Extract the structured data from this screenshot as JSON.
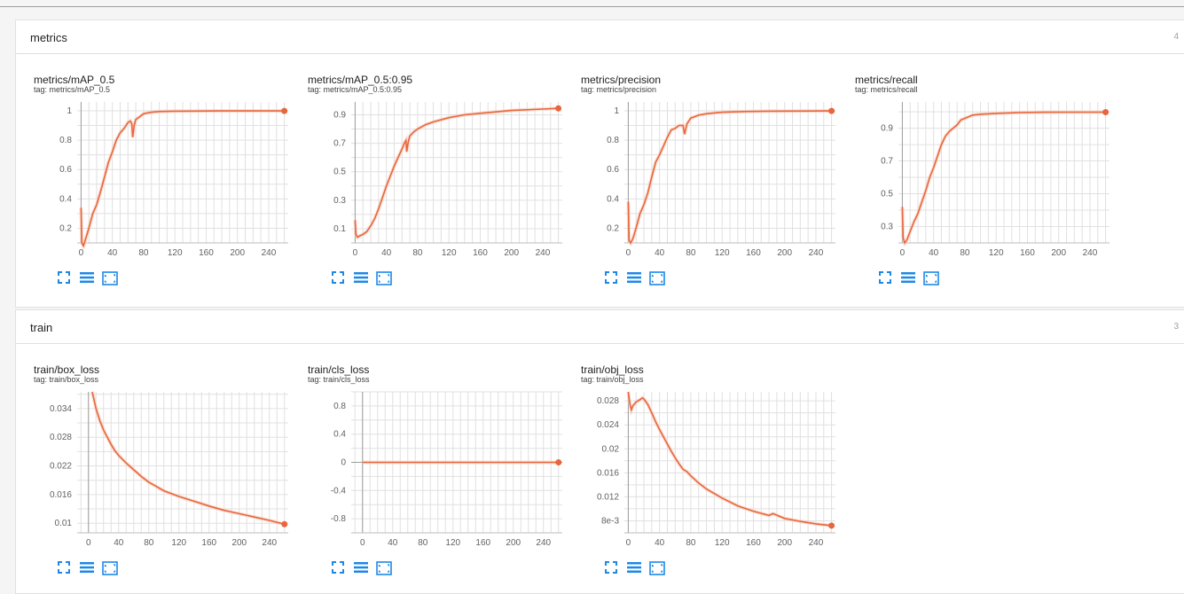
{
  "sections": [
    {
      "title": "metrics",
      "count": "4",
      "cards": [
        {
          "title": "metrics/mAP_0.5",
          "tag": "tag: metrics/mAP_0.5"
        },
        {
          "title": "metrics/mAP_0.5:0.95",
          "tag": "tag: metrics/mAP_0.5:0.95"
        },
        {
          "title": "metrics/precision",
          "tag": "tag: metrics/precision"
        },
        {
          "title": "metrics/recall",
          "tag": "tag: metrics/recall"
        }
      ]
    },
    {
      "title": "train",
      "count": "3",
      "cards": [
        {
          "title": "train/box_loss",
          "tag": "tag: train/box_loss"
        },
        {
          "title": "train/cls_loss",
          "tag": "tag: train/cls_loss"
        },
        {
          "title": "train/obj_loss",
          "tag": "tag: train/obj_loss"
        }
      ]
    }
  ],
  "toolbar": {
    "icons": [
      "fullscreen-icon",
      "toggle-y-log-icon",
      "fit-domain-icon"
    ]
  },
  "colors": {
    "series": "#e8663d",
    "series_smoothed_bg": "#f6c9b8",
    "grid": "#e0e0e0",
    "zero_axis": "#9e9e9e",
    "toolbar_icon": "#1e88e5"
  },
  "chart_data": [
    {
      "type": "line",
      "title": "metrics/mAP_0.5",
      "x_ticks": [
        "0",
        "40",
        "80",
        "120",
        "160",
        "200",
        "240"
      ],
      "y_ticks": [
        "0.2",
        "0.4",
        "0.6",
        "0.8",
        "1"
      ],
      "xlim": [
        -5,
        265
      ],
      "ylim": [
        0.1,
        1.06
      ],
      "series": [
        {
          "x": [
            0,
            1,
            3,
            6,
            10,
            15,
            20,
            25,
            30,
            35,
            40,
            45,
            50,
            55,
            60,
            63,
            65,
            66,
            68,
            70,
            75,
            80,
            90,
            100,
            120,
            150,
            180,
            220,
            260
          ],
          "y": [
            0.34,
            0.1,
            0.08,
            0.13,
            0.2,
            0.3,
            0.36,
            0.45,
            0.55,
            0.65,
            0.72,
            0.8,
            0.85,
            0.88,
            0.92,
            0.93,
            0.91,
            0.82,
            0.9,
            0.94,
            0.96,
            0.98,
            0.99,
            0.995,
            0.997,
            0.998,
            0.999,
            0.999,
            0.999
          ]
        }
      ]
    },
    {
      "type": "line",
      "title": "metrics/mAP_0.5:0.95",
      "x_ticks": [
        "0",
        "40",
        "80",
        "120",
        "160",
        "200",
        "240"
      ],
      "y_ticks": [
        "0.1",
        "0.3",
        "0.5",
        "0.7",
        "0.9"
      ],
      "xlim": [
        -5,
        265
      ],
      "ylim": [
        0.0,
        0.99
      ],
      "series": [
        {
          "x": [
            0,
            1,
            3,
            6,
            10,
            15,
            20,
            25,
            30,
            35,
            40,
            45,
            50,
            55,
            60,
            63,
            65,
            66,
            68,
            70,
            75,
            80,
            90,
            100,
            120,
            140,
            160,
            180,
            200,
            220,
            240,
            260
          ],
          "y": [
            0.16,
            0.06,
            0.04,
            0.05,
            0.06,
            0.08,
            0.12,
            0.17,
            0.24,
            0.32,
            0.4,
            0.47,
            0.54,
            0.6,
            0.66,
            0.7,
            0.72,
            0.64,
            0.71,
            0.75,
            0.78,
            0.8,
            0.83,
            0.85,
            0.88,
            0.9,
            0.91,
            0.92,
            0.93,
            0.935,
            0.94,
            0.945
          ]
        }
      ]
    },
    {
      "type": "line",
      "title": "metrics/precision",
      "x_ticks": [
        "0",
        "40",
        "80",
        "120",
        "160",
        "200",
        "240"
      ],
      "y_ticks": [
        "0.2",
        "0.4",
        "0.6",
        "0.8",
        "1"
      ],
      "xlim": [
        -5,
        265
      ],
      "ylim": [
        0.1,
        1.06
      ],
      "series": [
        {
          "x": [
            0,
            1,
            3,
            6,
            10,
            15,
            20,
            25,
            30,
            35,
            40,
            45,
            50,
            55,
            60,
            65,
            70,
            72,
            75,
            80,
            90,
            100,
            120,
            150,
            180,
            220,
            260
          ],
          "y": [
            0.38,
            0.12,
            0.1,
            0.13,
            0.2,
            0.3,
            0.36,
            0.44,
            0.55,
            0.65,
            0.7,
            0.76,
            0.82,
            0.87,
            0.88,
            0.9,
            0.9,
            0.84,
            0.91,
            0.95,
            0.97,
            0.98,
            0.99,
            0.995,
            0.997,
            0.998,
            0.999
          ]
        }
      ]
    },
    {
      "type": "line",
      "title": "metrics/recall",
      "x_ticks": [
        "0",
        "40",
        "80",
        "120",
        "160",
        "200",
        "240"
      ],
      "y_ticks": [
        "0.3",
        "0.5",
        "0.7",
        "0.9"
      ],
      "xlim": [
        -5,
        265
      ],
      "ylim": [
        0.2,
        1.06
      ],
      "series": [
        {
          "x": [
            0,
            1,
            3,
            6,
            10,
            15,
            20,
            25,
            30,
            35,
            40,
            45,
            50,
            55,
            60,
            65,
            70,
            75,
            80,
            90,
            100,
            120,
            150,
            180,
            220,
            260
          ],
          "y": [
            0.42,
            0.23,
            0.2,
            0.22,
            0.27,
            0.33,
            0.38,
            0.45,
            0.52,
            0.6,
            0.66,
            0.73,
            0.8,
            0.85,
            0.88,
            0.9,
            0.92,
            0.95,
            0.96,
            0.98,
            0.985,
            0.99,
            0.995,
            0.997,
            0.998,
            0.998
          ]
        }
      ]
    },
    {
      "type": "line",
      "title": "train/box_loss",
      "x_ticks": [
        "0",
        "40",
        "80",
        "120",
        "160",
        "200",
        "240"
      ],
      "y_ticks": [
        "0.01",
        "0.016",
        "0.022",
        "0.028",
        "0.034"
      ],
      "xlim": [
        -15,
        265
      ],
      "ylim": [
        0.008,
        0.0375
      ],
      "series": [
        {
          "x": [
            5,
            10,
            15,
            20,
            25,
            30,
            35,
            40,
            45,
            50,
            60,
            70,
            80,
            90,
            100,
            120,
            140,
            160,
            180,
            200,
            220,
            240,
            260
          ],
          "y": [
            0.0375,
            0.034,
            0.0315,
            0.0295,
            0.028,
            0.0265,
            0.0252,
            0.0242,
            0.0234,
            0.0226,
            0.0212,
            0.0198,
            0.0186,
            0.0177,
            0.0168,
            0.0156,
            0.0146,
            0.0136,
            0.0127,
            0.012,
            0.0113,
            0.0106,
            0.0098
          ]
        }
      ]
    },
    {
      "type": "line",
      "title": "train/cls_loss",
      "x_ticks": [
        "0",
        "40",
        "80",
        "120",
        "160",
        "200",
        "240"
      ],
      "y_ticks": [
        "-0.8",
        "-0.4",
        "0",
        "0.4",
        "0.8"
      ],
      "xlim": [
        -15,
        265
      ],
      "ylim": [
        -1.0,
        1.0
      ],
      "series": [
        {
          "x": [
            0,
            260
          ],
          "y": [
            0,
            0
          ]
        }
      ]
    },
    {
      "type": "line",
      "title": "train/obj_loss",
      "x_ticks": [
        "0",
        "40",
        "80",
        "120",
        "160",
        "200",
        "240"
      ],
      "y_ticks": [
        "8e-3",
        "0.012",
        "0.016",
        "0.02",
        "0.024",
        "0.028"
      ],
      "xlim": [
        -5,
        265
      ],
      "ylim": [
        0.006,
        0.0295
      ],
      "series": [
        {
          "x": [
            0,
            2,
            4,
            6,
            10,
            15,
            18,
            20,
            25,
            30,
            35,
            40,
            45,
            50,
            55,
            60,
            65,
            70,
            75,
            80,
            90,
            100,
            120,
            140,
            160,
            180,
            185,
            200,
            220,
            240,
            260
          ],
          "y": [
            0.0295,
            0.0275,
            0.0265,
            0.0272,
            0.0278,
            0.0282,
            0.0285,
            0.0283,
            0.0274,
            0.026,
            0.0245,
            0.0232,
            0.022,
            0.0208,
            0.0196,
            0.0185,
            0.0175,
            0.0166,
            0.0162,
            0.0155,
            0.0143,
            0.0133,
            0.0118,
            0.0105,
            0.0096,
            0.0089,
            0.0092,
            0.0084,
            0.0079,
            0.0075,
            0.0072
          ]
        }
      ]
    }
  ]
}
